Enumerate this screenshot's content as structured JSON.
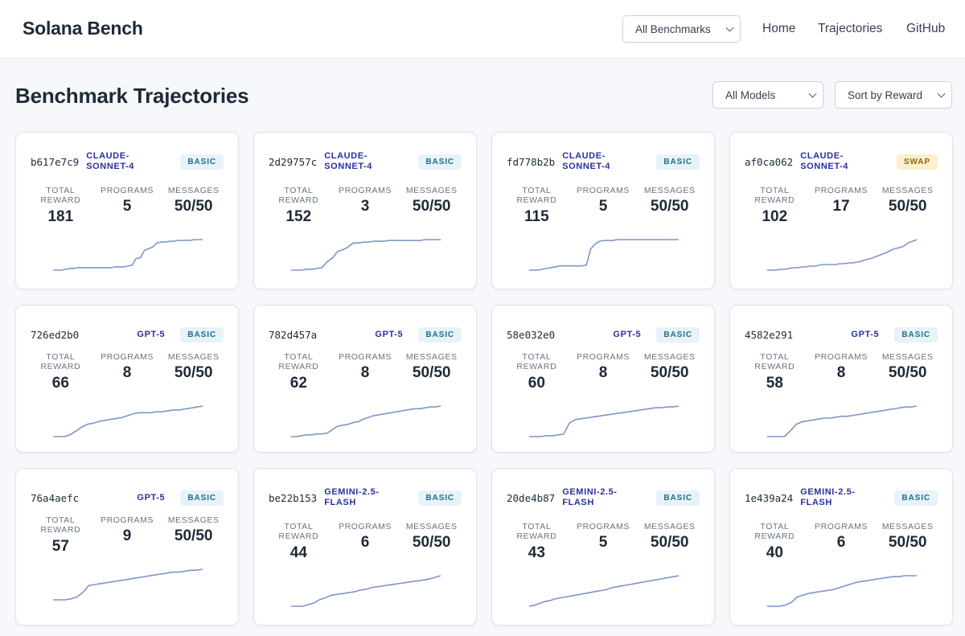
{
  "header": {
    "brand": "Solana Bench",
    "benchmark_select": "All Benchmarks",
    "nav": [
      "Home",
      "Trajectories",
      "GitHub"
    ]
  },
  "page": {
    "title": "Benchmark Trajectories",
    "models_select": "All Models",
    "sort_select": "Sort by Reward"
  },
  "labels": {
    "total": "TOTAL",
    "reward": "REWARD",
    "programs": "PROGRAMS",
    "messages": "MESSAGES"
  },
  "colors": {
    "spark_line": "#7f95c9",
    "model_text": "#2b2f9e",
    "badge_basic_bg": "#e8f3f8",
    "badge_swap_bg": "#fbf0cd"
  },
  "cards": [
    {
      "hash": "b617e7c9",
      "model": "CLAUDE-SONNET-4",
      "badge": "BASIC",
      "reward": "181",
      "programs": "5",
      "messages": "50/50",
      "spark": [
        0,
        0,
        0,
        1,
        2,
        2,
        3,
        3,
        3,
        3,
        3,
        3,
        3,
        3,
        3,
        4,
        4,
        4,
        5,
        6,
        14,
        15,
        24,
        26,
        28,
        33,
        34,
        34,
        35,
        35,
        36,
        36,
        36,
        36,
        37,
        37,
        37
      ]
    },
    {
      "hash": "2d29757c",
      "model": "CLAUDE-SONNET-4",
      "badge": "BASIC",
      "reward": "152",
      "programs": "3",
      "messages": "50/50",
      "spark": [
        0,
        0,
        0,
        1,
        1,
        2,
        3,
        10,
        14,
        22,
        24,
        27,
        32,
        32,
        33,
        33,
        34,
        34,
        34,
        35,
        35,
        35,
        35,
        35,
        35,
        35,
        36,
        36,
        36,
        36
      ]
    },
    {
      "hash": "fd778b2b",
      "model": "CLAUDE-SONNET-4",
      "badge": "BASIC",
      "reward": "115",
      "programs": "5",
      "messages": "50/50",
      "spark": [
        0,
        0,
        0,
        1,
        2,
        3,
        4,
        5,
        5,
        5,
        5,
        5,
        5,
        6,
        25,
        31,
        34,
        35,
        35,
        35,
        36,
        36,
        36,
        36,
        36,
        36,
        36,
        36,
        36,
        36,
        36,
        36,
        36,
        36,
        36
      ]
    },
    {
      "hash": "af0ca062",
      "model": "CLAUDE-SONNET-4",
      "badge": "SWAP",
      "reward": "102",
      "programs": "17",
      "messages": "50/50",
      "spark": [
        0,
        0,
        0,
        1,
        1,
        2,
        3,
        3,
        4,
        4,
        5,
        5,
        6,
        7,
        7,
        7,
        7,
        8,
        8,
        9,
        9,
        10,
        11,
        13,
        14,
        16,
        18,
        20,
        22,
        25,
        27,
        28,
        30,
        34,
        36,
        38
      ]
    },
    {
      "hash": "726ed2b0",
      "model": "GPT-5",
      "badge": "BASIC",
      "reward": "66",
      "programs": "8",
      "messages": "50/50",
      "spark": [
        0,
        0,
        0,
        2,
        6,
        10,
        13,
        14,
        16,
        17,
        18,
        19,
        20,
        22,
        24,
        25,
        25,
        25,
        26,
        26,
        27,
        28,
        28,
        29,
        30,
        31,
        32
      ]
    },
    {
      "hash": "782d457a",
      "model": "GPT-5",
      "badge": "BASIC",
      "reward": "62",
      "programs": "8",
      "messages": "50/50",
      "spark": [
        0,
        0,
        1,
        2,
        2,
        3,
        3,
        4,
        8,
        12,
        13,
        14,
        16,
        17,
        20,
        22,
        24,
        25,
        26,
        27,
        28,
        29,
        30,
        31,
        32,
        32,
        33,
        34,
        34,
        35
      ]
    },
    {
      "hash": "58e032e0",
      "model": "GPT-5",
      "badge": "BASIC",
      "reward": "60",
      "programs": "8",
      "messages": "50/50",
      "spark": [
        0,
        0,
        0,
        1,
        1,
        2,
        3,
        16,
        20,
        21,
        22,
        23,
        24,
        25,
        26,
        27,
        28,
        29,
        30,
        31,
        32,
        33,
        34,
        34,
        35,
        35,
        36
      ]
    },
    {
      "hash": "4582e291",
      "model": "GPT-5",
      "badge": "BASIC",
      "reward": "58",
      "programs": "8",
      "messages": "50/50",
      "spark": [
        0,
        0,
        0,
        0,
        6,
        13,
        16,
        17,
        18,
        19,
        20,
        20,
        21,
        22,
        22,
        23,
        24,
        25,
        26,
        27,
        28,
        29,
        30,
        31,
        32,
        32,
        33
      ]
    },
    {
      "hash": "76a4aefc",
      "model": "GPT-5",
      "badge": "BASIC",
      "reward": "57",
      "programs": "9",
      "messages": "50/50",
      "spark": [
        0,
        0,
        0,
        1,
        3,
        8,
        15,
        16,
        17,
        18,
        19,
        20,
        21,
        22,
        23,
        24,
        25,
        26,
        27,
        28,
        29,
        29,
        30,
        31,
        31,
        32
      ]
    },
    {
      "hash": "be22b153",
      "model": "GEMINI-2.5-FLASH",
      "badge": "BASIC",
      "reward": "44",
      "programs": "6",
      "messages": "50/50",
      "spark": [
        0,
        0,
        0,
        2,
        4,
        8,
        10,
        13,
        14,
        15,
        16,
        17,
        19,
        20,
        22,
        23,
        24,
        25,
        26,
        27,
        28,
        29,
        30,
        31,
        32,
        34,
        36
      ]
    },
    {
      "hash": "20de4b87",
      "model": "GEMINI-2.5-FLASH",
      "badge": "BASIC",
      "reward": "43",
      "programs": "5",
      "messages": "50/50",
      "spark": [
        0,
        1,
        3,
        5,
        6,
        8,
        9,
        10,
        11,
        12,
        13,
        14,
        15,
        16,
        17,
        18,
        20,
        21,
        22,
        23,
        24,
        25,
        26,
        27,
        28,
        29,
        30,
        31,
        32,
        33
      ]
    },
    {
      "hash": "1e439a24",
      "model": "GEMINI-2.5-FLASH",
      "badge": "BASIC",
      "reward": "40",
      "programs": "6",
      "messages": "50/50",
      "spark": [
        0,
        0,
        0,
        1,
        4,
        10,
        12,
        14,
        15,
        16,
        17,
        18,
        20,
        22,
        24,
        26,
        27,
        28,
        29,
        30,
        31,
        32,
        32,
        33,
        33,
        33
      ]
    }
  ]
}
